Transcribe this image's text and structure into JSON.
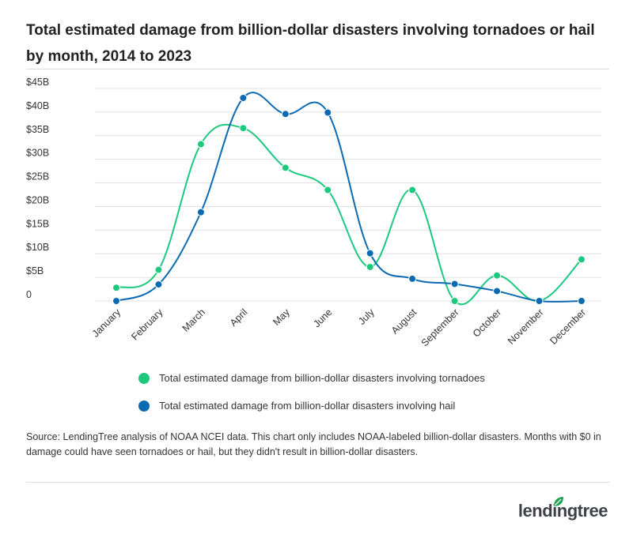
{
  "title": "Total estimated damage from billion-dollar disasters involving tornadoes or hail by month, 2014 to 2023",
  "source_note": "Source: LendingTree analysis of NOAA NCEI data. This chart only includes NOAA-labeled billion-dollar disasters. Months with $0 in damage could have seen tornadoes or hail, but they didn't result in billion-dollar disasters.",
  "brand": "lendingtree",
  "colors": {
    "tornado": "#1dc97f",
    "hail": "#0c6ab3",
    "grid": "#e0e0e0",
    "brand_leaf": "#1ea554"
  },
  "chart_data": {
    "type": "line",
    "categories": [
      "January",
      "February",
      "March",
      "April",
      "May",
      "June",
      "July",
      "August",
      "September",
      "October",
      "November",
      "December"
    ],
    "y_ticks": [
      0,
      5,
      10,
      15,
      20,
      25,
      30,
      35,
      40,
      45
    ],
    "y_tick_labels": [
      "0",
      "$5B",
      "$10B",
      "$15B",
      "$20B",
      "$25B",
      "$30B",
      "$35B",
      "$40B",
      "$45B"
    ],
    "ylim": [
      0,
      45
    ],
    "grid": true,
    "legend_position": "bottom",
    "series": [
      {
        "name": "Total estimated damage from billion-dollar disasters involving tornadoes",
        "color": "#1dc97f",
        "values": [
          2.8,
          6.6,
          33.2,
          36.6,
          28.2,
          23.5,
          7.2,
          23.5,
          0,
          5.4,
          0,
          8.8
        ]
      },
      {
        "name": "Total estimated damage from billion-dollar disasters involving hail",
        "color": "#0c6ab3",
        "values": [
          0,
          3.5,
          18.8,
          43.0,
          39.6,
          39.9,
          10.1,
          4.7,
          3.6,
          2.1,
          0,
          0
        ]
      }
    ]
  }
}
